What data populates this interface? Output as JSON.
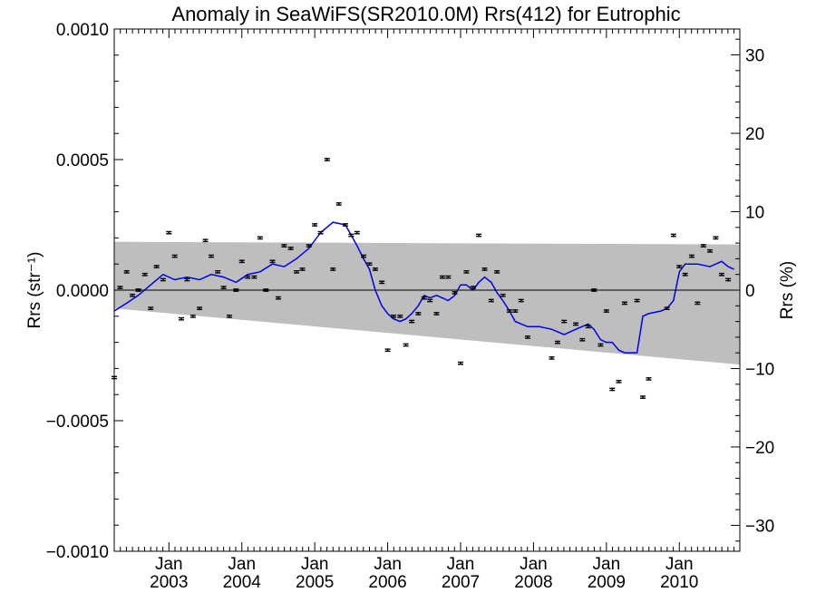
{
  "chart_data": {
    "type": "scatter",
    "title": "Anomaly in SeaWiFS(SR2010.0M) Rrs(412) for Eutrophic",
    "ylabel_left": "Rrs (str⁻¹)",
    "ylabel_right": "Rrs (%)",
    "xlim": [
      2002.25,
      2010.83
    ],
    "ylim": [
      -0.001,
      0.001
    ],
    "ylim_right": [
      -33.3,
      33.3
    ],
    "left_ticks": [
      {
        "value": -0.001,
        "label": "−0.0010"
      },
      {
        "value": -0.0005,
        "label": "−0.0005"
      },
      {
        "value": 0,
        "label": "0.0000"
      },
      {
        "value": 0.0005,
        "label": "0.0005"
      },
      {
        "value": 0.001,
        "label": "0.0010"
      }
    ],
    "right_ticks": [
      {
        "value": -30,
        "label": "−30"
      },
      {
        "value": -20,
        "label": "−20"
      },
      {
        "value": -10,
        "label": "−10"
      },
      {
        "value": 0,
        "label": "0"
      },
      {
        "value": 10,
        "label": "10"
      },
      {
        "value": 20,
        "label": "20"
      },
      {
        "value": 30,
        "label": "30"
      }
    ],
    "x_ticks": [
      {
        "value": 2003.0,
        "month": "Jan",
        "year": "2003"
      },
      {
        "value": 2004.0,
        "month": "Jan",
        "year": "2004"
      },
      {
        "value": 2005.0,
        "month": "Jan",
        "year": "2005"
      },
      {
        "value": 2006.0,
        "month": "Jan",
        "year": "2006"
      },
      {
        "value": 2007.0,
        "month": "Jan",
        "year": "2007"
      },
      {
        "value": 2008.0,
        "month": "Jan",
        "year": "2008"
      },
      {
        "value": 2009.0,
        "month": "Jan",
        "year": "2009"
      },
      {
        "value": 2010.0,
        "month": "Jan",
        "year": "2010"
      }
    ],
    "band": {
      "upper": [
        [
          2002.25,
          0.000185
        ],
        [
          2010.83,
          0.000175
        ]
      ],
      "lower": [
        [
          2002.25,
          -7e-05
        ],
        [
          2010.83,
          -0.000285
        ]
      ]
    },
    "zero_line": 0,
    "points": [
      {
        "x": 2002.25,
        "y": -0.000335
      },
      {
        "x": 2002.33,
        "y": 1e-05
      },
      {
        "x": 2002.42,
        "y": 7e-05
      },
      {
        "x": 2002.5,
        "y": -2e-05
      },
      {
        "x": 2002.58,
        "y": 0.0
      },
      {
        "x": 2002.67,
        "y": 6e-05
      },
      {
        "x": 2002.75,
        "y": -7e-05
      },
      {
        "x": 2002.83,
        "y": 9e-05
      },
      {
        "x": 2002.92,
        "y": 4e-05
      },
      {
        "x": 2003.0,
        "y": 0.00022
      },
      {
        "x": 2003.08,
        "y": 0.00013
      },
      {
        "x": 2003.17,
        "y": -0.00011
      },
      {
        "x": 2003.25,
        "y": 4e-05
      },
      {
        "x": 2003.33,
        "y": -0.0001
      },
      {
        "x": 2003.42,
        "y": -7e-05
      },
      {
        "x": 2003.5,
        "y": 0.00019
      },
      {
        "x": 2003.58,
        "y": 0.00013
      },
      {
        "x": 2003.67,
        "y": 7e-05
      },
      {
        "x": 2003.75,
        "y": 1e-05
      },
      {
        "x": 2003.83,
        "y": -0.0001
      },
      {
        "x": 2003.92,
        "y": 0.0
      },
      {
        "x": 2004.0,
        "y": 0.00011
      },
      {
        "x": 2004.08,
        "y": 5e-05
      },
      {
        "x": 2004.17,
        "y": 5e-05
      },
      {
        "x": 2004.25,
        "y": 0.0002
      },
      {
        "x": 2004.33,
        "y": 0.0
      },
      {
        "x": 2004.42,
        "y": 0.00011
      },
      {
        "x": 2004.5,
        "y": -3e-05
      },
      {
        "x": 2004.58,
        "y": 0.00017
      },
      {
        "x": 2004.67,
        "y": 0.00016
      },
      {
        "x": 2004.75,
        "y": 7e-05
      },
      {
        "x": 2004.83,
        "y": 8e-05
      },
      {
        "x": 2004.92,
        "y": 0.00017
      },
      {
        "x": 2005.0,
        "y": 0.00025
      },
      {
        "x": 2005.08,
        "y": 0.00022
      },
      {
        "x": 2005.17,
        "y": 0.0005
      },
      {
        "x": 2005.25,
        "y": 8e-05
      },
      {
        "x": 2005.33,
        "y": 0.00033
      },
      {
        "x": 2005.42,
        "y": 0.00025
      },
      {
        "x": 2005.5,
        "y": 0.00021
      },
      {
        "x": 2005.58,
        "y": 0.00022
      },
      {
        "x": 2005.67,
        "y": 0.00013
      },
      {
        "x": 2005.75,
        "y": 0.0001
      },
      {
        "x": 2005.83,
        "y": 8e-05
      },
      {
        "x": 2005.92,
        "y": 3e-05
      },
      {
        "x": 2006.0,
        "y": -0.00023
      },
      {
        "x": 2006.08,
        "y": -0.0001
      },
      {
        "x": 2006.17,
        "y": -0.0001
      },
      {
        "x": 2006.25,
        "y": -0.00021
      },
      {
        "x": 2006.33,
        "y": -0.00012
      },
      {
        "x": 2006.42,
        "y": -9e-05
      },
      {
        "x": 2006.5,
        "y": -3e-05
      },
      {
        "x": 2006.58,
        "y": -4e-05
      },
      {
        "x": 2006.67,
        "y": -9e-05
      },
      {
        "x": 2006.75,
        "y": 5e-05
      },
      {
        "x": 2006.83,
        "y": 5e-05
      },
      {
        "x": 2006.92,
        "y": -1e-05
      },
      {
        "x": 2007.0,
        "y": -0.00028
      },
      {
        "x": 2007.08,
        "y": 7e-05
      },
      {
        "x": 2007.17,
        "y": 1e-05
      },
      {
        "x": 2007.25,
        "y": 0.00021
      },
      {
        "x": 2007.33,
        "y": 8e-05
      },
      {
        "x": 2007.42,
        "y": -4e-05
      },
      {
        "x": 2007.5,
        "y": 7e-05
      },
      {
        "x": 2007.58,
        "y": -2e-05
      },
      {
        "x": 2007.67,
        "y": -8e-05
      },
      {
        "x": 2007.75,
        "y": -8e-05
      },
      {
        "x": 2007.83,
        "y": -4e-05
      },
      {
        "x": 2007.92,
        "y": -0.00018
      },
      {
        "x": 2008.25,
        "y": -0.00026
      },
      {
        "x": 2008.33,
        "y": -0.0002
      },
      {
        "x": 2008.42,
        "y": -0.00012
      },
      {
        "x": 2008.58,
        "y": -0.00013
      },
      {
        "x": 2008.67,
        "y": -0.00019
      },
      {
        "x": 2008.75,
        "y": -0.00014
      },
      {
        "x": 2008.83,
        "y": 0.0
      },
      {
        "x": 2008.92,
        "y": -0.00021
      },
      {
        "x": 2009.0,
        "y": -8e-05
      },
      {
        "x": 2009.08,
        "y": -0.00038
      },
      {
        "x": 2009.17,
        "y": -0.00035
      },
      {
        "x": 2009.25,
        "y": -5e-05
      },
      {
        "x": 2009.42,
        "y": -4e-05
      },
      {
        "x": 2009.5,
        "y": -0.00041
      },
      {
        "x": 2009.58,
        "y": -0.00034
      },
      {
        "x": 2009.83,
        "y": -7e-05
      },
      {
        "x": 2009.92,
        "y": 0.00021
      },
      {
        "x": 2010.0,
        "y": 9e-05
      },
      {
        "x": 2010.08,
        "y": 6e-05
      },
      {
        "x": 2010.17,
        "y": 0.00013
      },
      {
        "x": 2010.25,
        "y": -5e-05
      },
      {
        "x": 2010.33,
        "y": 0.00017
      },
      {
        "x": 2010.42,
        "y": 0.00015
      },
      {
        "x": 2010.5,
        "y": 0.0002
      },
      {
        "x": 2010.58,
        "y": 6e-05
      },
      {
        "x": 2010.67,
        "y": 4e-05
      }
    ],
    "error_bar_half_width": 4e-06,
    "trend_line": [
      [
        2002.25,
        -8e-05
      ],
      [
        2002.42,
        -5e-05
      ],
      [
        2002.58,
        -2e-05
      ],
      [
        2002.75,
        2e-05
      ],
      [
        2002.92,
        6e-05
      ],
      [
        2003.08,
        4e-05
      ],
      [
        2003.25,
        5e-05
      ],
      [
        2003.42,
        4e-05
      ],
      [
        2003.58,
        6e-05
      ],
      [
        2003.75,
        5e-05
      ],
      [
        2003.92,
        3e-05
      ],
      [
        2004.08,
        6e-05
      ],
      [
        2004.25,
        7e-05
      ],
      [
        2004.42,
        0.0001
      ],
      [
        2004.58,
        9e-05
      ],
      [
        2004.75,
        0.00012
      ],
      [
        2004.92,
        0.00016
      ],
      [
        2005.08,
        0.00022
      ],
      [
        2005.25,
        0.00026
      ],
      [
        2005.42,
        0.00025
      ],
      [
        2005.5,
        0.00021
      ],
      [
        2005.58,
        0.00017
      ],
      [
        2005.67,
        0.00012
      ],
      [
        2005.75,
        8e-05
      ],
      [
        2005.83,
        0.0
      ],
      [
        2005.92,
        -6e-05
      ],
      [
        2006.0,
        -9e-05
      ],
      [
        2006.08,
        -0.00011
      ],
      [
        2006.17,
        -0.00012
      ],
      [
        2006.25,
        -0.00011
      ],
      [
        2006.33,
        -9e-05
      ],
      [
        2006.42,
        -6e-05
      ],
      [
        2006.5,
        -2e-05
      ],
      [
        2006.58,
        -3e-05
      ],
      [
        2006.67,
        -2e-05
      ],
      [
        2006.75,
        -3e-05
      ],
      [
        2006.83,
        -4e-05
      ],
      [
        2006.92,
        -2e-05
      ],
      [
        2007.0,
        2e-05
      ],
      [
        2007.08,
        2e-05
      ],
      [
        2007.17,
        0.0
      ],
      [
        2007.25,
        3e-05
      ],
      [
        2007.33,
        5e-05
      ],
      [
        2007.42,
        3e-05
      ],
      [
        2007.5,
        -1e-05
      ],
      [
        2007.58,
        -4e-05
      ],
      [
        2007.67,
        -8e-05
      ],
      [
        2007.75,
        -0.00012
      ],
      [
        2007.92,
        -0.00014
      ],
      [
        2008.08,
        -0.00014
      ],
      [
        2008.25,
        -0.00015
      ],
      [
        2008.42,
        -0.00017
      ],
      [
        2008.58,
        -0.00015
      ],
      [
        2008.75,
        -0.00013
      ],
      [
        2008.83,
        -0.00015
      ],
      [
        2008.92,
        -0.00019
      ],
      [
        2009.0,
        -0.0002
      ],
      [
        2009.08,
        -0.0002
      ],
      [
        2009.17,
        -0.00023
      ],
      [
        2009.25,
        -0.00024
      ],
      [
        2009.42,
        -0.00024
      ],
      [
        2009.5,
        -0.0001
      ],
      [
        2009.58,
        -9e-05
      ],
      [
        2009.75,
        -8e-05
      ],
      [
        2009.83,
        -7e-05
      ],
      [
        2009.92,
        -4e-05
      ],
      [
        2010.0,
        7e-05
      ],
      [
        2010.08,
        0.0001
      ],
      [
        2010.25,
        0.0001
      ],
      [
        2010.42,
        9e-05
      ],
      [
        2010.5,
        0.0001
      ],
      [
        2010.58,
        0.00011
      ],
      [
        2010.67,
        9e-05
      ],
      [
        2010.75,
        8e-05
      ]
    ],
    "colors": {
      "band": "#bebebe",
      "trend": "#0000e6",
      "points": "#000000",
      "axes": "#000000"
    }
  }
}
